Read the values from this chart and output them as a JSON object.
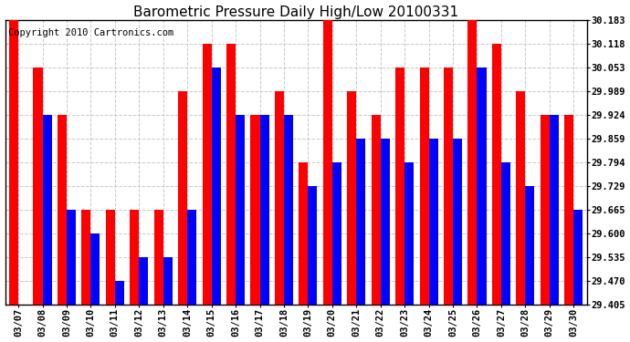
{
  "title": "Barometric Pressure Daily High/Low 20100331",
  "copyright": "Copyright 2010 Cartronics.com",
  "dates": [
    "03/07",
    "03/08",
    "03/09",
    "03/10",
    "03/11",
    "03/12",
    "03/13",
    "03/14",
    "03/15",
    "03/16",
    "03/17",
    "03/18",
    "03/19",
    "03/20",
    "03/21",
    "03/22",
    "03/23",
    "03/24",
    "03/25",
    "03/26",
    "03/27",
    "03/28",
    "03/29",
    "03/30"
  ],
  "highs": [
    30.183,
    30.053,
    29.924,
    29.665,
    29.665,
    29.665,
    29.665,
    29.989,
    30.118,
    30.118,
    29.924,
    29.989,
    29.794,
    30.183,
    29.989,
    29.924,
    30.053,
    30.053,
    30.053,
    30.183,
    30.118,
    29.989,
    29.924,
    29.924
  ],
  "lows": [
    29.405,
    29.924,
    29.665,
    29.6,
    29.47,
    29.535,
    29.535,
    29.665,
    30.053,
    29.924,
    29.924,
    29.924,
    29.729,
    29.794,
    29.859,
    29.859,
    29.794,
    29.859,
    29.859,
    30.053,
    29.794,
    29.729,
    29.924,
    29.665
  ],
  "high_color": "#ff0000",
  "low_color": "#0000ff",
  "bg_color": "#ffffff",
  "grid_color": "#c8c8c8",
  "ymin": 29.405,
  "ymax": 30.183,
  "yticks": [
    30.183,
    30.118,
    30.053,
    29.989,
    29.924,
    29.859,
    29.794,
    29.729,
    29.665,
    29.6,
    29.535,
    29.47,
    29.405
  ],
  "title_fontsize": 11,
  "copyright_fontsize": 7.5,
  "bar_width": 0.38
}
